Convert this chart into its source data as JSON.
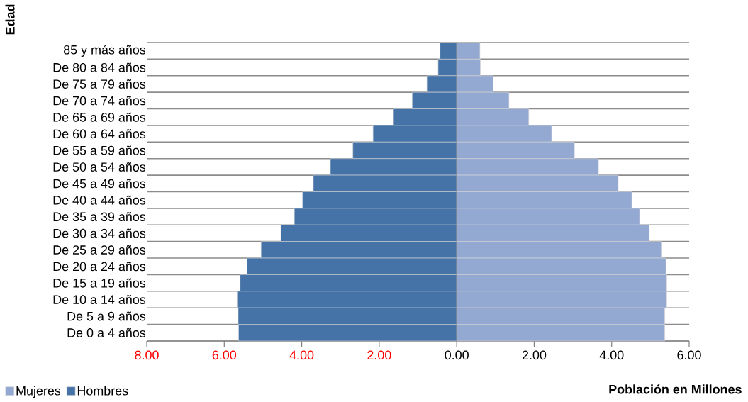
{
  "chart_data": {
    "type": "bar",
    "orientation": "horizontal",
    "stacked": true,
    "xlabel": "Población en Millones",
    "ylabel": "Edad",
    "categories": [
      "85 y más años",
      "De 80 a 84 años",
      "De 75 a 79 años",
      "De 70 a 74 años",
      "De 65 a 69 años",
      "De 60 a 64 años",
      "De 55 a 59 años",
      "De 50 a 54 años",
      "De 45 a 49 años",
      "De 40 a 44 años",
      "De 35 a 39 años",
      "De 30 a 34 años",
      "De 25 a 29 años",
      "De 20 a 24 años",
      "De 15 a 19 años",
      "De 10 a 14 años",
      "De 5 a 9 años",
      "De 0 a 4 años"
    ],
    "series": [
      {
        "name": "Mujeres",
        "color": "#93a9d1",
        "values": [
          0.6,
          0.61,
          0.94,
          1.35,
          1.86,
          2.45,
          3.04,
          3.66,
          4.17,
          4.52,
          4.72,
          4.97,
          5.28,
          5.4,
          5.42,
          5.42,
          5.37,
          5.37
        ]
      },
      {
        "name": "Hombres",
        "color": "#4573a7",
        "values": [
          -0.43,
          -0.48,
          -0.77,
          -1.15,
          -1.63,
          -2.16,
          -2.68,
          -3.26,
          -3.7,
          -3.98,
          -4.19,
          -4.54,
          -5.05,
          -5.41,
          -5.59,
          -5.67,
          -5.64,
          -5.63
        ]
      }
    ],
    "xlim": [
      -8,
      6
    ],
    "xticks": [
      {
        "value": -8,
        "label": "8.00"
      },
      {
        "value": -6,
        "label": "6.00"
      },
      {
        "value": -4,
        "label": "4.00"
      },
      {
        "value": -2,
        "label": "2.00"
      },
      {
        "value": 0,
        "label": "0.00"
      },
      {
        "value": 2,
        "label": "2.00"
      },
      {
        "value": 4,
        "label": "4.00"
      },
      {
        "value": 6,
        "label": "6.00"
      }
    ],
    "grid": "y",
    "legend": "bottom left"
  }
}
